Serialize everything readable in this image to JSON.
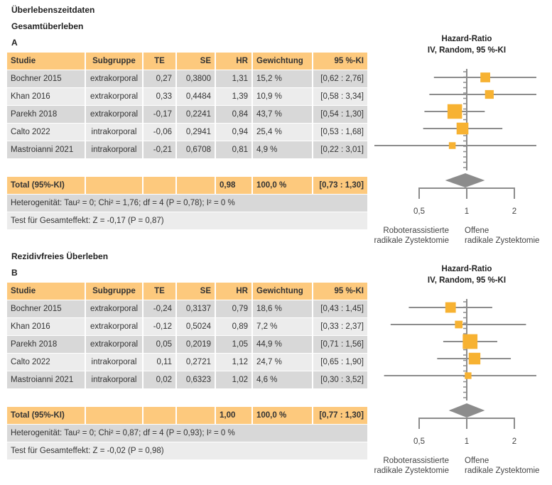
{
  "heading": "Überlebenszeitdaten",
  "columns": [
    "Studie",
    "Subgruppe",
    "TE",
    "SE",
    "HR",
    "Gewichtung",
    "95 %-KI"
  ],
  "plot_header": [
    "Hazard-Ratio",
    "IV, Random, 95 %-KI"
  ],
  "axis_ticks": [
    "0,5",
    "1",
    "2"
  ],
  "favours_left": [
    "Roboterassistierte",
    "radikale Zystektomie"
  ],
  "favours_right": [
    "Offene",
    "radikale Zystektomie"
  ],
  "colors": {
    "header": "#fdc97d",
    "square": "#f7b232",
    "diamond": "#8c8c8c",
    "line": "#8c8c8c"
  },
  "chart_data": [
    {
      "type": "forest",
      "section_title": "Gesamtüberleben",
      "label": "A",
      "x_scale": "log",
      "xlim": [
        0.5,
        2
      ],
      "rows": [
        {
          "study": "Bochner 2015",
          "subgroup": "extrakorporal",
          "te": "0,27",
          "se": "0,3800",
          "hr": "1,31",
          "weight": "15,2 %",
          "ci": "[0,62 : 2,76]",
          "hr_val": 1.31,
          "lo": 0.62,
          "hi": 2.76,
          "w": 15.2
        },
        {
          "study": "Khan 2016",
          "subgroup": "extrakorporal",
          "te": "0,33",
          "se": "0,4484",
          "hr": "1,39",
          "weight": "10,9 %",
          "ci": "[0,58 : 3,34]",
          "hr_val": 1.39,
          "lo": 0.58,
          "hi": 3.34,
          "w": 10.9
        },
        {
          "study": "Parekh 2018",
          "subgroup": "extrakorporal",
          "te": "-0,17",
          "se": "0,2241",
          "hr": "0,84",
          "weight": "43,7 %",
          "ci": "[0,54 : 1,30]",
          "hr_val": 0.84,
          "lo": 0.54,
          "hi": 1.3,
          "w": 43.7
        },
        {
          "study": "Calto 2022",
          "subgroup": "intrakorporal",
          "te": "-0,06",
          "se": "0,2941",
          "hr": "0,94",
          "weight": "25,4 %",
          "ci": "[0,53 : 1,68]",
          "hr_val": 0.94,
          "lo": 0.53,
          "hi": 1.68,
          "w": 25.4
        },
        {
          "study": "Mastroianni 2021",
          "subgroup": "intrakorporal",
          "te": "-0,21",
          "se": "0,6708",
          "hr": "0,81",
          "weight": "4,9 %",
          "ci": "[0,22 : 3,01]",
          "hr_val": 0.81,
          "lo": 0.22,
          "hi": 3.01,
          "w": 4.9
        }
      ],
      "total": {
        "label": "Total (95%-KI)",
        "hr": "0,98",
        "weight": "100,0 %",
        "ci": "[0,73 : 1,30]",
        "hr_val": 0.98,
        "lo": 0.73,
        "hi": 1.3
      },
      "heterogeneity": "Heterogenität: Tau² = 0; Chi² = 1,76; df = 4 (P = 0,78); I² = 0 %",
      "overall_test": "Test für Gesamteffekt: Z = -0,17 (P = 0,87)"
    },
    {
      "type": "forest",
      "section_title": "Rezidivfreies Überleben",
      "label": "B",
      "x_scale": "log",
      "xlim": [
        0.5,
        2
      ],
      "rows": [
        {
          "study": "Bochner 2015",
          "subgroup": "extrakorporal",
          "te": "-0,24",
          "se": "0,3137",
          "hr": "0,79",
          "weight": "18,6 %",
          "ci": "[0,43 : 1,45]",
          "hr_val": 0.79,
          "lo": 0.43,
          "hi": 1.45,
          "w": 18.6
        },
        {
          "study": "Khan 2016",
          "subgroup": "extrakorporal",
          "te": "-0,12",
          "se": "0,5024",
          "hr": "0,89",
          "weight": "7,2 %",
          "ci": "[0,33 : 2,37]",
          "hr_val": 0.89,
          "lo": 0.33,
          "hi": 2.37,
          "w": 7.2
        },
        {
          "study": "Parekh 2018",
          "subgroup": "extrakorporal",
          "te": "0,05",
          "se": "0,2019",
          "hr": "1,05",
          "weight": "44,9 %",
          "ci": "[0,71 : 1,56]",
          "hr_val": 1.05,
          "lo": 0.71,
          "hi": 1.56,
          "w": 44.9
        },
        {
          "study": "Calto 2022",
          "subgroup": "intrakorporal",
          "te": "0,11",
          "se": "0,2721",
          "hr": "1,12",
          "weight": "24,7 %",
          "ci": "[0,65 : 1,90]",
          "hr_val": 1.12,
          "lo": 0.65,
          "hi": 1.9,
          "w": 24.7
        },
        {
          "study": "Mastroianni 2021",
          "subgroup": "intrakorporal",
          "te": "0,02",
          "se": "0,6323",
          "hr": "1,02",
          "weight": "4,6 %",
          "ci": "[0,30 : 3,52]",
          "hr_val": 1.02,
          "lo": 0.3,
          "hi": 3.52,
          "w": 4.6
        }
      ],
      "total": {
        "label": "Total (95%-KI)",
        "hr": "1,00",
        "weight": "100,0 %",
        "ci": "[0,77 : 1,30]",
        "hr_val": 1.0,
        "lo": 0.77,
        "hi": 1.3
      },
      "heterogeneity": "Heterogenität: Tau² = 0; Chi² = 0,87; df = 4 (P = 0,93); I² = 0 %",
      "overall_test": "Test für Gesamteffekt: Z = -0,02 (P = 0,98)"
    }
  ]
}
